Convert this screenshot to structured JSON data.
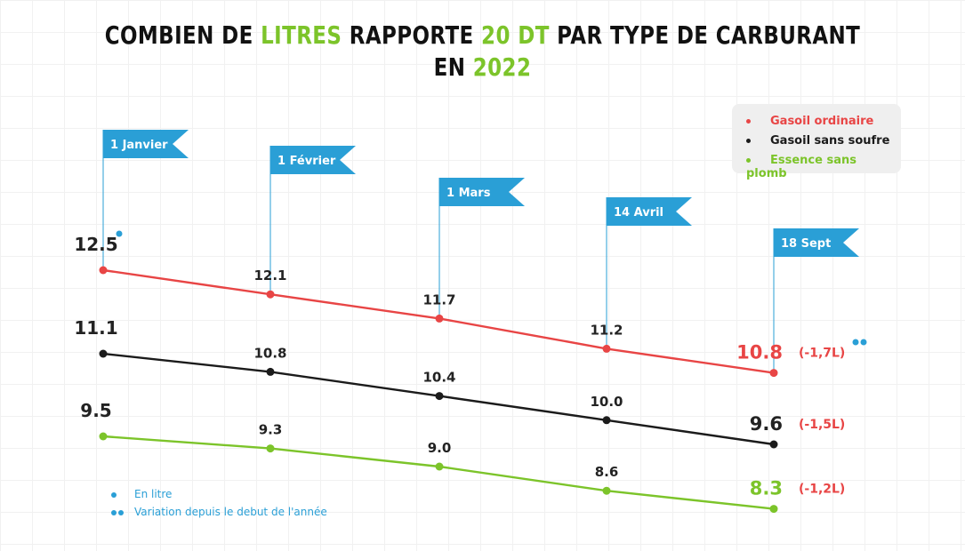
{
  "title": {
    "line1": [
      {
        "text": "COMBIEN DE ",
        "accent": false
      },
      {
        "text": "LITRES",
        "accent": true
      },
      {
        "text": " RAPPORTE ",
        "accent": false
      },
      {
        "text": "20 DT",
        "accent": true
      },
      {
        "text": " PAR TYPE DE CARBURANT",
        "accent": false
      }
    ],
    "line2": [
      {
        "text": "EN ",
        "accent": false
      },
      {
        "text": "2022",
        "accent": true
      }
    ]
  },
  "colors": {
    "gasoil_ordinaire": "#e84545",
    "gasoil_sans_soufre": "#1b1b1b",
    "essence_sans_plomb": "#7cc42a",
    "flag": "#2a9fd6",
    "accent": "#7cc42a"
  },
  "legend": {
    "items": [
      {
        "label": "Gasoil ordinaire",
        "color": "#e84545"
      },
      {
        "label": "Gasoil sans soufre",
        "color": "#1b1b1b"
      },
      {
        "label": "Essence sans plomb",
        "color": "#7cc42a"
      }
    ]
  },
  "notes": [
    {
      "dots": 1,
      "text": "En litre"
    },
    {
      "dots": 2,
      "text": "Variation depuis le debut de l'année"
    }
  ],
  "chart_data": {
    "type": "line",
    "categories": [
      "1 Janvier",
      "1 Février",
      "1 Mars",
      "14 Avril",
      "18 Sept"
    ],
    "series": [
      {
        "name": "Gasoil ordinaire",
        "values": [
          12.5,
          12.1,
          11.7,
          11.2,
          10.8
        ],
        "labels": [
          "12.5",
          "12.1",
          "11.7",
          "11.2",
          "10.8"
        ],
        "variation": "(-1,7L)"
      },
      {
        "name": "Gasoil sans soufre",
        "values": [
          11.1,
          10.8,
          10.4,
          10.0,
          9.6
        ],
        "labels": [
          "11.1",
          "10.8",
          "10.4",
          "10.0",
          "9.6"
        ],
        "variation": "(-1,5L)"
      },
      {
        "name": "Essence sans plomb",
        "values": [
          9.5,
          9.3,
          9.0,
          8.6,
          8.3
        ],
        "labels": [
          "9.5",
          "9.3",
          "9.0",
          "8.6",
          "8.3"
        ],
        "variation": "(-1,2L)"
      }
    ],
    "legend_position": "top-right",
    "grid": true
  }
}
